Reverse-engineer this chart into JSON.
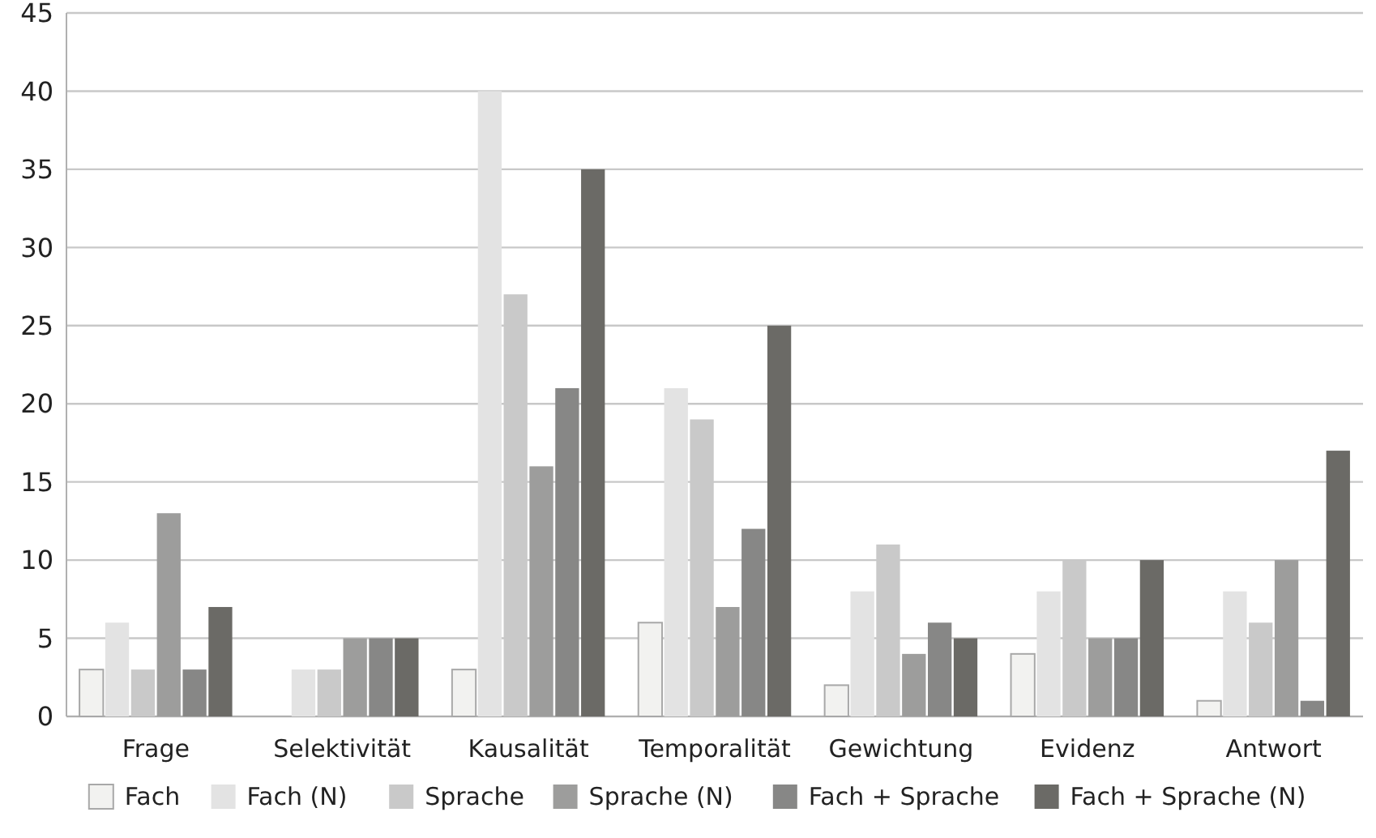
{
  "chart_data": {
    "type": "bar",
    "categories": [
      "Frage",
      "Selektivität",
      "Kausalität",
      "Temporalität",
      "Gewichtung",
      "Evidenz",
      "Antwort"
    ],
    "series": [
      {
        "name": "Fach",
        "color": "#f2f2f0",
        "values": [
          3,
          0,
          3,
          6,
          2,
          4,
          1
        ]
      },
      {
        "name": "Fach (N)",
        "color": "#e3e3e3",
        "values": [
          6,
          3,
          40,
          21,
          8,
          8,
          8
        ]
      },
      {
        "name": "Sprache",
        "color": "#c9c9c9",
        "values": [
          3,
          3,
          27,
          19,
          11,
          10,
          6
        ]
      },
      {
        "name": "Sprache (N)",
        "color": "#9d9d9c",
        "values": [
          13,
          5,
          16,
          7,
          4,
          5,
          10
        ]
      },
      {
        "name": "Fach + Sprache",
        "color": "#878786",
        "values": [
          3,
          5,
          21,
          12,
          6,
          5,
          1
        ]
      },
      {
        "name": "Fach + Sprache (N)",
        "color": "#6b6a66",
        "values": [
          7,
          5,
          35,
          25,
          5,
          10,
          17
        ]
      }
    ],
    "ylim": [
      0,
      45
    ],
    "yticks": [
      0,
      5,
      10,
      15,
      20,
      25,
      30,
      35,
      40,
      45
    ],
    "grid": "y",
    "legend": "bottom"
  }
}
